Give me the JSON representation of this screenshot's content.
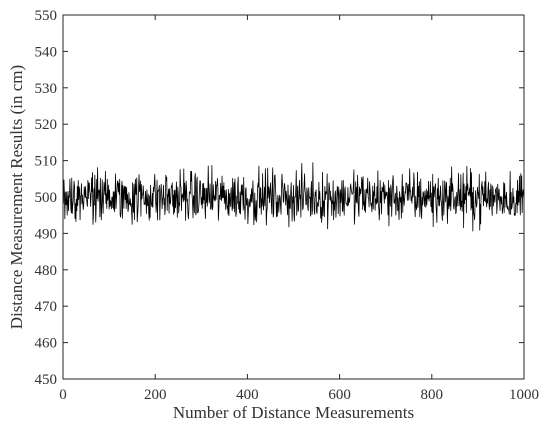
{
  "chart_data": {
    "type": "line",
    "title": "",
    "xlabel": "Number of Distance Measurements",
    "ylabel": "Distance Measurement Results (in cm)",
    "xlim": [
      0,
      1000
    ],
    "ylim": [
      450,
      550
    ],
    "xticks": [
      0,
      200,
      400,
      600,
      800,
      1000
    ],
    "yticks": [
      450,
      460,
      470,
      480,
      490,
      500,
      510,
      520,
      530,
      540,
      550
    ],
    "grid": false,
    "legend": "none",
    "series": [
      {
        "line_color": "#000000",
        "sample_count": 1000,
        "value_center": 500,
        "value_min": 490,
        "value_max": 510
      }
    ]
  }
}
